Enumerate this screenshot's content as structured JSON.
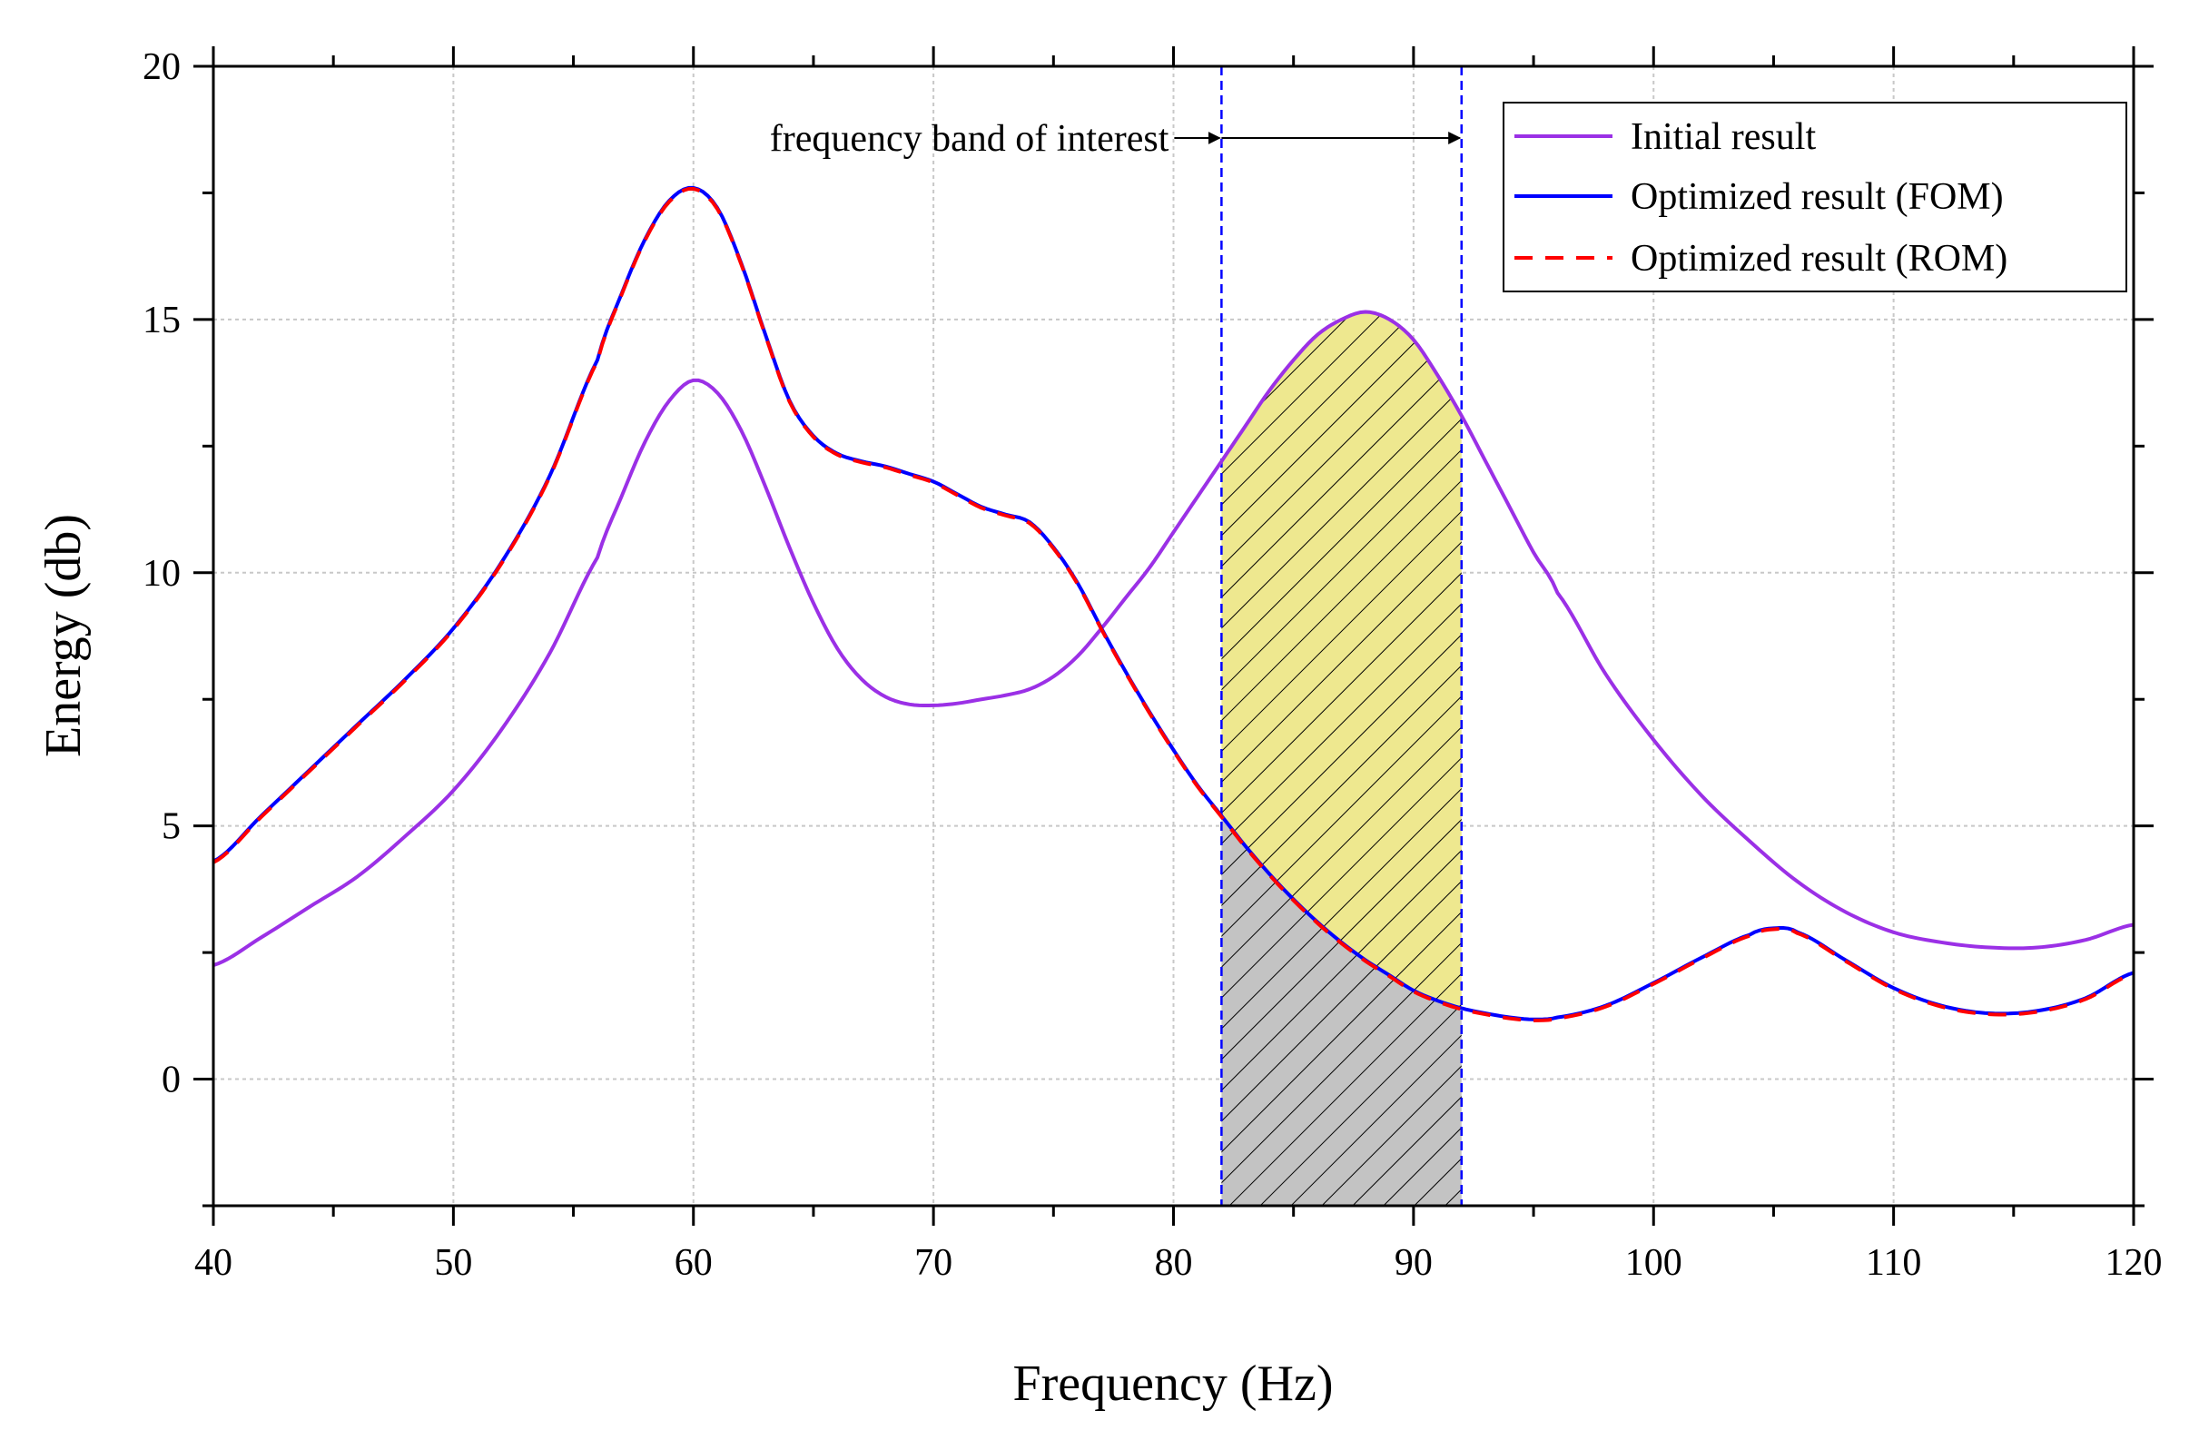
{
  "chart_data": {
    "type": "line",
    "xlabel": "Frequency (Hz)",
    "ylabel": "Energy (db)",
    "xlim": [
      40,
      120
    ],
    "ylim": [
      -2.5,
      20
    ],
    "xticks": [
      40,
      50,
      60,
      70,
      80,
      90,
      100,
      110,
      120
    ],
    "yticks": [
      0,
      5,
      10,
      15,
      20
    ],
    "grid": true,
    "legend_position": "top-right",
    "band": {
      "start": 82,
      "end": 92,
      "label": "frequency band of interest"
    },
    "colors": {
      "initial": "#9b30e6",
      "fom": "#0000ff",
      "rom": "#ff0000",
      "band_line": "#0000ff",
      "fill_upper": "#eee88f",
      "fill_lower": "#c3c3c3",
      "grid": "#c8c8c8"
    },
    "series": [
      {
        "name": "Initial result",
        "style": "solid",
        "x": [
          40,
          42,
          44,
          46,
          48,
          50,
          52,
          54,
          56,
          57,
          58,
          59,
          60,
          61,
          62,
          63,
          64,
          65,
          66,
          67,
          68,
          69,
          70,
          71,
          72,
          73,
          74,
          75,
          76,
          77,
          78,
          79,
          80,
          81,
          82,
          83,
          84,
          85,
          86,
          87,
          88,
          89,
          90,
          91,
          92,
          93,
          94,
          95,
          96,
          98,
          100,
          102,
          104,
          106,
          108,
          110,
          112,
          114,
          116,
          118,
          120
        ],
        "values": [
          2.25,
          2.8,
          3.4,
          4.0,
          4.8,
          5.7,
          6.9,
          8.4,
          10.3,
          11.5,
          12.6,
          13.4,
          13.8,
          13.55,
          12.8,
          11.7,
          10.5,
          9.4,
          8.5,
          7.9,
          7.55,
          7.4,
          7.38,
          7.42,
          7.5,
          7.58,
          7.7,
          7.95,
          8.35,
          8.9,
          9.5,
          10.1,
          10.8,
          11.5,
          12.2,
          12.9,
          13.6,
          14.2,
          14.7,
          15.0,
          15.15,
          15.0,
          14.6,
          13.9,
          13.1,
          12.2,
          11.3,
          10.4,
          9.6,
          8.0,
          6.7,
          5.6,
          4.7,
          3.9,
          3.3,
          2.9,
          2.7,
          2.6,
          2.6,
          2.75,
          3.05
        ]
      },
      {
        "name": "Optimized result (FOM)",
        "style": "solid",
        "x": [
          40,
          42,
          44,
          46,
          48,
          50,
          52,
          54,
          56,
          57,
          58,
          59,
          60,
          61,
          62,
          63,
          64,
          65,
          66,
          67,
          68,
          69,
          70,
          71,
          72,
          73,
          74,
          75,
          76,
          77,
          78,
          79,
          80,
          81,
          82,
          83,
          84,
          85,
          86,
          87,
          88,
          89,
          90,
          91,
          92,
          93,
          94,
          95,
          96,
          98,
          100,
          102,
          104,
          105,
          106,
          108,
          110,
          112,
          114,
          116,
          118,
          120
        ],
        "values": [
          4.3,
          5.2,
          6.1,
          7.0,
          7.9,
          8.9,
          10.2,
          11.9,
          14.2,
          15.5,
          16.6,
          17.35,
          17.6,
          17.2,
          16.1,
          14.7,
          13.4,
          12.7,
          12.35,
          12.2,
          12.1,
          11.95,
          11.8,
          11.55,
          11.3,
          11.15,
          11.0,
          10.5,
          9.8,
          8.9,
          8.05,
          7.25,
          6.5,
          5.8,
          5.2,
          4.6,
          4.05,
          3.55,
          3.1,
          2.7,
          2.35,
          2.05,
          1.75,
          1.55,
          1.4,
          1.3,
          1.22,
          1.18,
          1.22,
          1.45,
          1.9,
          2.4,
          2.85,
          2.98,
          2.9,
          2.35,
          1.8,
          1.45,
          1.3,
          1.35,
          1.6,
          2.1
        ]
      },
      {
        "name": "Optimized result (ROM)",
        "style": "dashed",
        "x": [
          40,
          42,
          44,
          46,
          48,
          50,
          52,
          54,
          56,
          57,
          58,
          59,
          60,
          61,
          62,
          63,
          64,
          65,
          66,
          67,
          68,
          69,
          70,
          71,
          72,
          73,
          74,
          75,
          76,
          77,
          78,
          79,
          80,
          81,
          82,
          83,
          84,
          85,
          86,
          87,
          88,
          89,
          90,
          91,
          92,
          93,
          94,
          95,
          96,
          98,
          100,
          102,
          104,
          105,
          106,
          108,
          110,
          112,
          114,
          116,
          118,
          120
        ],
        "values": [
          4.28,
          5.18,
          6.08,
          6.98,
          7.88,
          8.88,
          10.18,
          11.88,
          14.18,
          15.48,
          16.58,
          17.33,
          17.58,
          17.18,
          16.08,
          14.68,
          13.38,
          12.68,
          12.33,
          12.18,
          12.08,
          11.93,
          11.78,
          11.53,
          11.28,
          11.13,
          10.98,
          10.48,
          9.78,
          8.88,
          8.03,
          7.23,
          6.48,
          5.78,
          5.18,
          4.58,
          4.03,
          3.53,
          3.08,
          2.68,
          2.33,
          2.03,
          1.73,
          1.53,
          1.38,
          1.28,
          1.2,
          1.16,
          1.2,
          1.43,
          1.88,
          2.38,
          2.83,
          2.96,
          2.88,
          2.33,
          1.78,
          1.43,
          1.28,
          1.33,
          1.58,
          2.08
        ]
      }
    ]
  }
}
